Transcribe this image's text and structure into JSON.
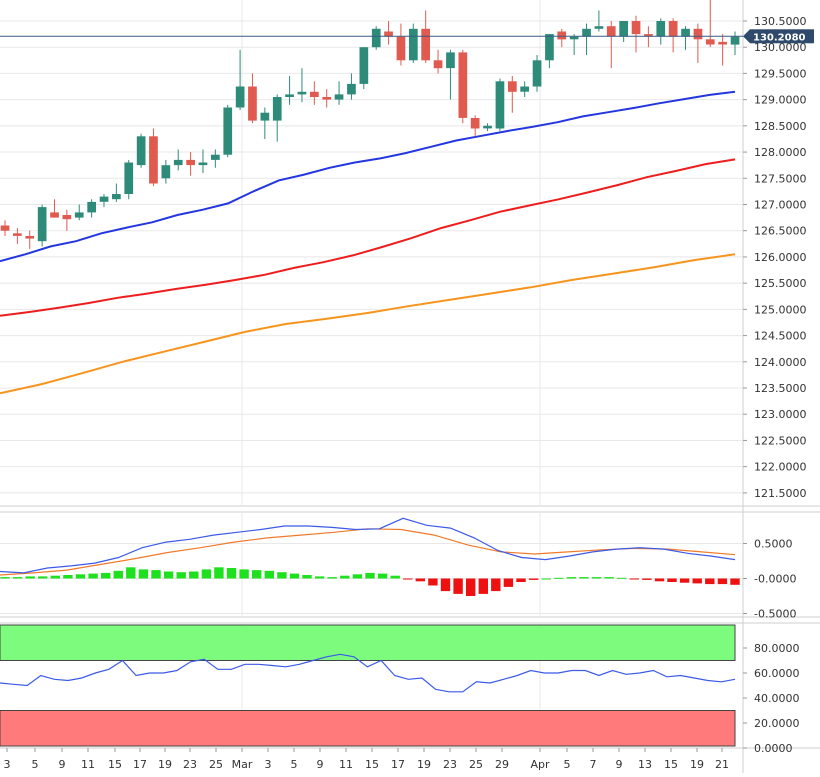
{
  "colors": {
    "up": "#2e8b7a",
    "down": "#e05a4f",
    "sma_fast": "#2336e0",
    "sma_mid": "#ee1d1d",
    "sma_slow": "#f7941d",
    "price_line": "#3b5b86",
    "price_badge": "#2f4a6b",
    "macd": "#3b5ae8",
    "signal": "#f07a2a",
    "hist_pos": "#1ee01e",
    "hist_neg": "#ee1111",
    "overbought_zone": "#7dfb7d",
    "oversold_zone": "#ff7b7b",
    "rsi": "#3b5ae8",
    "grid": "#e8e8e8"
  },
  "chart_data": [
    {
      "name": "price",
      "type": "candlestick",
      "current_price": 130.208,
      "current_price_label": "130.2080",
      "ylim": [
        121.25,
        130.9
      ],
      "y_ticks": [
        121.5,
        122.0,
        122.5,
        123.0,
        123.5,
        124.0,
        124.5,
        125.0,
        125.5,
        126.0,
        126.5,
        127.0,
        127.5,
        128.0,
        128.5,
        129.0,
        129.5,
        130.0,
        130.5
      ],
      "y_tick_labels": [
        "121.5000",
        "122.0000",
        "122.5000",
        "123.0000",
        "123.5000",
        "124.0000",
        "124.5000",
        "125.0000",
        "125.5000",
        "126.0000",
        "126.5000",
        "127.0000",
        "127.5000",
        "128.0000",
        "128.5000",
        "129.0000",
        "129.5000",
        "130.0000",
        "130.5000"
      ],
      "x_tick_labels": [
        "3",
        "5",
        "9",
        "11",
        "15",
        "17",
        "19",
        "23",
        "25",
        "Mar",
        "3",
        "5",
        "9",
        "11",
        "15",
        "17",
        "19",
        "23",
        "25",
        "29",
        "Apr",
        "5",
        "7",
        "9",
        "13",
        "15",
        "19",
        "21"
      ],
      "candles": [
        {
          "o": 126.6,
          "h": 126.7,
          "l": 126.4,
          "c": 126.5
        },
        {
          "o": 126.45,
          "h": 126.55,
          "l": 126.25,
          "c": 126.4
        },
        {
          "o": 126.4,
          "h": 126.5,
          "l": 126.15,
          "c": 126.35
        },
        {
          "o": 126.3,
          "h": 127.0,
          "l": 126.2,
          "c": 126.95
        },
        {
          "o": 126.85,
          "h": 127.1,
          "l": 126.75,
          "c": 126.75
        },
        {
          "o": 126.8,
          "h": 126.9,
          "l": 126.5,
          "c": 126.72
        },
        {
          "o": 126.75,
          "h": 127.0,
          "l": 126.7,
          "c": 126.85
        },
        {
          "o": 126.85,
          "h": 127.1,
          "l": 126.75,
          "c": 127.05
        },
        {
          "o": 127.05,
          "h": 127.2,
          "l": 126.95,
          "c": 127.15
        },
        {
          "o": 127.1,
          "h": 127.4,
          "l": 127.05,
          "c": 127.2
        },
        {
          "o": 127.2,
          "h": 127.85,
          "l": 127.1,
          "c": 127.8
        },
        {
          "o": 127.75,
          "h": 128.35,
          "l": 127.7,
          "c": 128.3
        },
        {
          "o": 128.3,
          "h": 128.45,
          "l": 127.35,
          "c": 127.4
        },
        {
          "o": 127.5,
          "h": 127.85,
          "l": 127.4,
          "c": 127.75
        },
        {
          "o": 127.75,
          "h": 128.05,
          "l": 127.65,
          "c": 127.85
        },
        {
          "o": 127.85,
          "h": 128.0,
          "l": 127.55,
          "c": 127.75
        },
        {
          "o": 127.75,
          "h": 128.05,
          "l": 127.6,
          "c": 127.8
        },
        {
          "o": 127.85,
          "h": 128.05,
          "l": 127.7,
          "c": 127.95
        },
        {
          "o": 127.95,
          "h": 128.9,
          "l": 127.9,
          "c": 128.85
        },
        {
          "o": 128.85,
          "h": 129.95,
          "l": 128.8,
          "c": 129.25
        },
        {
          "o": 129.25,
          "h": 129.5,
          "l": 128.55,
          "c": 128.6
        },
        {
          "o": 128.6,
          "h": 128.85,
          "l": 128.25,
          "c": 128.75
        },
        {
          "o": 128.6,
          "h": 129.1,
          "l": 128.2,
          "c": 129.05
        },
        {
          "o": 129.05,
          "h": 129.45,
          "l": 128.9,
          "c": 129.1
        },
        {
          "o": 129.1,
          "h": 129.6,
          "l": 128.95,
          "c": 129.15
        },
        {
          "o": 129.15,
          "h": 129.35,
          "l": 128.9,
          "c": 129.05
        },
        {
          "o": 129.05,
          "h": 129.2,
          "l": 128.85,
          "c": 129.0
        },
        {
          "o": 129.0,
          "h": 129.35,
          "l": 128.9,
          "c": 129.1
        },
        {
          "o": 129.1,
          "h": 129.5,
          "l": 129.0,
          "c": 129.3
        },
        {
          "o": 129.3,
          "h": 130.0,
          "l": 129.2,
          "c": 130.0
        },
        {
          "o": 130.0,
          "h": 130.4,
          "l": 129.95,
          "c": 130.35
        },
        {
          "o": 130.3,
          "h": 130.5,
          "l": 130.05,
          "c": 130.2
        },
        {
          "o": 130.2,
          "h": 130.45,
          "l": 129.65,
          "c": 129.75
        },
        {
          "o": 129.75,
          "h": 130.45,
          "l": 129.7,
          "c": 130.35
        },
        {
          "o": 130.35,
          "h": 130.7,
          "l": 129.7,
          "c": 129.75
        },
        {
          "o": 129.75,
          "h": 129.95,
          "l": 129.5,
          "c": 129.6
        },
        {
          "o": 129.6,
          "h": 129.95,
          "l": 129.0,
          "c": 129.9
        },
        {
          "o": 129.9,
          "h": 129.95,
          "l": 128.55,
          "c": 128.65
        },
        {
          "o": 128.65,
          "h": 128.7,
          "l": 128.3,
          "c": 128.45
        },
        {
          "o": 128.45,
          "h": 128.55,
          "l": 128.4,
          "c": 128.5
        },
        {
          "o": 128.45,
          "h": 129.4,
          "l": 128.4,
          "c": 129.35
        },
        {
          "o": 129.35,
          "h": 129.45,
          "l": 128.75,
          "c": 129.15
        },
        {
          "o": 129.15,
          "h": 129.35,
          "l": 129.05,
          "c": 129.25
        },
        {
          "o": 129.25,
          "h": 129.85,
          "l": 129.15,
          "c": 129.75
        },
        {
          "o": 129.75,
          "h": 130.25,
          "l": 129.6,
          "c": 130.25
        },
        {
          "o": 130.3,
          "h": 130.35,
          "l": 130.0,
          "c": 130.15
        },
        {
          "o": 130.15,
          "h": 130.25,
          "l": 129.85,
          "c": 130.2
        },
        {
          "o": 130.2,
          "h": 130.45,
          "l": 129.85,
          "c": 130.35
        },
        {
          "o": 130.35,
          "h": 130.7,
          "l": 130.3,
          "c": 130.4
        },
        {
          "o": 130.4,
          "h": 130.5,
          "l": 129.6,
          "c": 130.2
        },
        {
          "o": 130.2,
          "h": 130.5,
          "l": 130.1,
          "c": 130.5
        },
        {
          "o": 130.5,
          "h": 130.6,
          "l": 129.9,
          "c": 130.25
        },
        {
          "o": 130.25,
          "h": 130.4,
          "l": 130.0,
          "c": 130.2
        },
        {
          "o": 130.2,
          "h": 130.55,
          "l": 130.05,
          "c": 130.5
        },
        {
          "o": 130.5,
          "h": 130.55,
          "l": 129.9,
          "c": 130.2
        },
        {
          "o": 130.2,
          "h": 130.4,
          "l": 129.95,
          "c": 130.35
        },
        {
          "o": 130.35,
          "h": 130.45,
          "l": 129.7,
          "c": 130.15
        },
        {
          "o": 130.15,
          "h": 130.95,
          "l": 130.0,
          "c": 130.05
        },
        {
          "o": 130.1,
          "h": 130.25,
          "l": 129.65,
          "c": 130.05
        },
        {
          "o": 130.05,
          "h": 130.3,
          "l": 129.85,
          "c": 130.2
        }
      ],
      "series": [
        {
          "key": "sma_fast",
          "values": [
            125.92,
            126.05,
            126.2,
            126.3,
            126.45,
            126.56,
            126.66,
            126.8,
            126.9,
            127.02,
            127.25,
            127.46,
            127.57,
            127.7,
            127.8,
            127.88,
            127.98,
            128.1,
            128.22,
            128.31,
            128.4,
            128.48,
            128.57,
            128.68,
            128.76,
            128.84,
            128.93,
            129.01,
            129.09,
            129.15
          ]
        },
        {
          "key": "sma_mid",
          "values": [
            124.88,
            124.95,
            125.03,
            125.12,
            125.22,
            125.3,
            125.39,
            125.47,
            125.56,
            125.66,
            125.79,
            125.9,
            126.03,
            126.19,
            126.36,
            126.55,
            126.7,
            126.86,
            126.98,
            127.1,
            127.23,
            127.37,
            127.52,
            127.64,
            127.77,
            127.86
          ]
        },
        {
          "key": "sma_slow",
          "values": [
            123.4,
            123.57,
            123.78,
            124.0,
            124.19,
            124.38,
            124.57,
            124.72,
            124.82,
            124.93,
            125.06,
            125.18,
            125.3,
            125.42,
            125.56,
            125.68,
            125.8,
            125.94,
            126.05
          ]
        }
      ]
    },
    {
      "name": "macd",
      "type": "line",
      "ylim": [
        -0.55,
        0.95
      ],
      "y_ticks": [
        -0.5,
        0.0,
        0.5
      ],
      "y_tick_labels": [
        "-0.5000",
        "-0.0000",
        "0.5000"
      ],
      "series": [
        {
          "key": "macd",
          "values": [
            0.1,
            0.08,
            0.15,
            0.18,
            0.22,
            0.3,
            0.44,
            0.52,
            0.56,
            0.62,
            0.66,
            0.7,
            0.75,
            0.75,
            0.73,
            0.7,
            0.71,
            0.86,
            0.76,
            0.72,
            0.58,
            0.4,
            0.3,
            0.27,
            0.32,
            0.38,
            0.42,
            0.44,
            0.42,
            0.36,
            0.32,
            0.27
          ]
        },
        {
          "key": "signal",
          "values": [
            0.05,
            0.08,
            0.12,
            0.2,
            0.28,
            0.37,
            0.44,
            0.52,
            0.58,
            0.62,
            0.66,
            0.71,
            0.7,
            0.62,
            0.48,
            0.38,
            0.35,
            0.38,
            0.41,
            0.43,
            0.42,
            0.38,
            0.34
          ]
        }
      ],
      "histogram": [
        0.02,
        0.02,
        0.03,
        0.03,
        0.04,
        0.05,
        0.06,
        0.07,
        0.08,
        0.11,
        0.16,
        0.13,
        0.12,
        0.1,
        0.09,
        0.1,
        0.13,
        0.16,
        0.15,
        0.13,
        0.12,
        0.11,
        0.09,
        0.07,
        0.05,
        0.03,
        0.02,
        0.04,
        0.06,
        0.08,
        0.07,
        0.04,
        -0.01,
        -0.04,
        -0.1,
        -0.18,
        -0.22,
        -0.25,
        -0.22,
        -0.18,
        -0.12,
        -0.05,
        -0.02,
        0.0,
        0.01,
        0.02,
        0.02,
        0.02,
        0.02,
        0.01,
        -0.01,
        -0.02,
        -0.04,
        -0.05,
        -0.06,
        -0.07,
        -0.08,
        -0.08,
        -0.09
      ]
    },
    {
      "name": "rsi",
      "type": "line",
      "ylim": [
        0,
        100
      ],
      "y_ticks": [
        0,
        20,
        40,
        60,
        80
      ],
      "y_tick_labels": [
        "0.0000",
        "20.0000",
        "40.0000",
        "60.0000",
        "80.0000"
      ],
      "zones": {
        "overbought": [
          70,
          100
        ],
        "oversold": [
          0,
          30
        ]
      },
      "series": [
        {
          "key": "rsi",
          "values": [
            52,
            51,
            50,
            58,
            55,
            54,
            56,
            60,
            63,
            70,
            58,
            60,
            60,
            62,
            69,
            71,
            63,
            63,
            67,
            67,
            66,
            65,
            67,
            70,
            73,
            75,
            73,
            65,
            70,
            58,
            55,
            56,
            47,
            45,
            45,
            53,
            52,
            55,
            58,
            62,
            60,
            60,
            62,
            62,
            58,
            62,
            59,
            60,
            62,
            57,
            58,
            56,
            54,
            53,
            55
          ]
        }
      ]
    }
  ]
}
